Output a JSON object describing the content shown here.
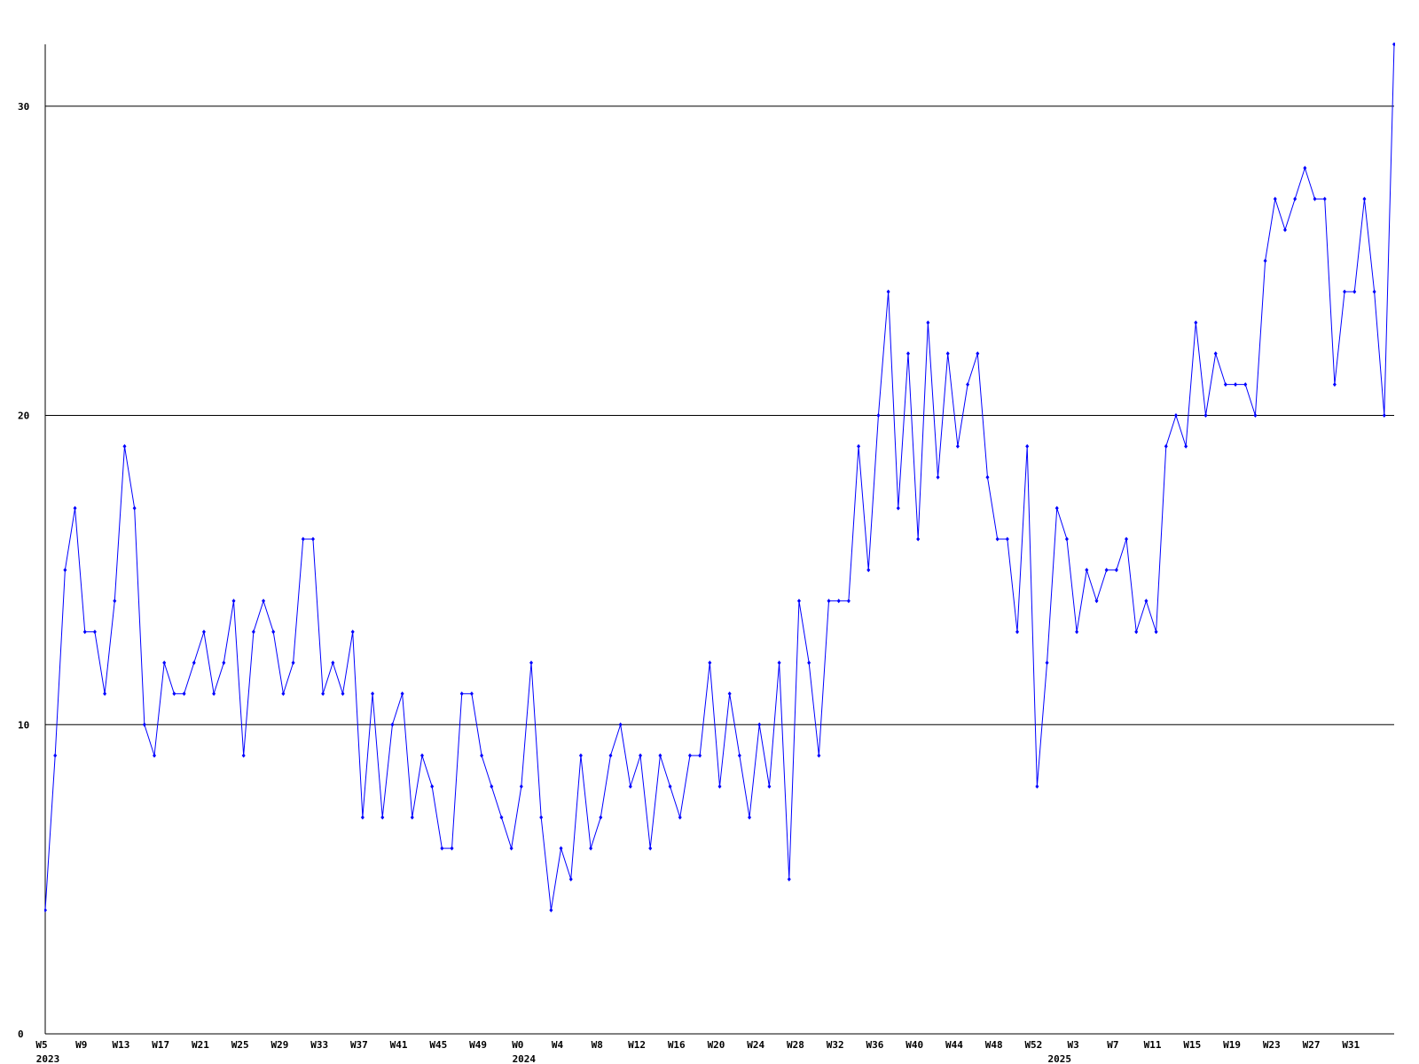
{
  "chart_data": {
    "type": "line",
    "color": "#0000ff",
    "grid": true,
    "ylim": [
      0,
      32
    ],
    "yticks": [
      0,
      10,
      20,
      30
    ],
    "categories": [
      "W5",
      null,
      null,
      null,
      "W9",
      null,
      null,
      null,
      "W13",
      null,
      null,
      null,
      "W17",
      null,
      null,
      null,
      "W21",
      null,
      null,
      null,
      "W25",
      null,
      null,
      null,
      "W29",
      null,
      null,
      null,
      "W33",
      null,
      null,
      null,
      "W37",
      null,
      null,
      null,
      "W41",
      null,
      null,
      null,
      "W45",
      null,
      null,
      null,
      "W49",
      null,
      null,
      null,
      "W0",
      null,
      null,
      null,
      "W4",
      null,
      null,
      null,
      "W8",
      null,
      null,
      null,
      "W12",
      null,
      null,
      null,
      "W16",
      null,
      null,
      null,
      "W20",
      null,
      null,
      null,
      "W24",
      null,
      null,
      null,
      "W28",
      null,
      null,
      null,
      "W32",
      null,
      null,
      null,
      "W36",
      null,
      null,
      null,
      "W40",
      null,
      null,
      null,
      "W44",
      null,
      null,
      null,
      "W48",
      null,
      null,
      null,
      "W52",
      null,
      null,
      null,
      "W3",
      null,
      null,
      null,
      "W7",
      null,
      null,
      null,
      "W11",
      null,
      null,
      null,
      "W15",
      null,
      null,
      null,
      "W19",
      null,
      null,
      null,
      "W23",
      null,
      null,
      null,
      "W27",
      null,
      null,
      null,
      "W31",
      null,
      null,
      null,
      null
    ],
    "category_years": [
      "2023",
      null,
      null,
      null,
      null,
      null,
      null,
      null,
      null,
      null,
      null,
      null,
      null,
      null,
      null,
      null,
      null,
      null,
      null,
      null,
      null,
      null,
      null,
      null,
      null,
      null,
      null,
      null,
      null,
      null,
      null,
      null,
      null,
      null,
      null,
      null,
      null,
      null,
      null,
      null,
      null,
      null,
      null,
      null,
      null,
      null,
      null,
      null,
      "2024",
      null,
      null,
      null,
      null,
      null,
      null,
      null,
      null,
      null,
      null,
      null,
      null,
      null,
      null,
      null,
      null,
      null,
      null,
      null,
      null,
      null,
      null,
      null,
      null,
      null,
      null,
      null,
      null,
      null,
      null,
      null,
      null,
      null,
      null,
      null,
      null,
      null,
      null,
      null,
      null,
      null,
      null,
      null,
      null,
      null,
      null,
      null,
      null,
      null,
      null,
      null,
      null,
      null,
      "2025",
      null,
      null,
      null,
      null,
      null,
      null,
      null,
      null,
      null,
      null,
      null,
      null,
      null,
      null,
      null,
      null,
      null,
      null,
      null,
      null,
      null,
      null,
      null,
      null,
      null,
      null,
      null,
      null,
      null,
      null,
      null,
      null,
      null
    ],
    "values": [
      4,
      9,
      15,
      17,
      13,
      13,
      11,
      14,
      19,
      17,
      10,
      9,
      12,
      11,
      11,
      12,
      13,
      11,
      12,
      14,
      9,
      13,
      14,
      13,
      11,
      12,
      16,
      16,
      11,
      12,
      11,
      13,
      7,
      11,
      7,
      10,
      11,
      7,
      9,
      8,
      6,
      6,
      11,
      11,
      9,
      8,
      7,
      6,
      8,
      12,
      7,
      4,
      6,
      5,
      9,
      6,
      7,
      9,
      10,
      8,
      9,
      6,
      9,
      8,
      7,
      9,
      9,
      12,
      8,
      11,
      9,
      7,
      10,
      8,
      12,
      5,
      14,
      12,
      9,
      14,
      14,
      14,
      19,
      15,
      20,
      24,
      17,
      22,
      16,
      23,
      18,
      22,
      19,
      21,
      22,
      18,
      16,
      16,
      13,
      19,
      8,
      12,
      17,
      16,
      13,
      15,
      14,
      15,
      15,
      16,
      13,
      14,
      13,
      19,
      20,
      19,
      23,
      20,
      22,
      21,
      21,
      21,
      20,
      25,
      27,
      26,
      27,
      28,
      27,
      27,
      21,
      24,
      24,
      27,
      24,
      20,
      32
    ]
  }
}
